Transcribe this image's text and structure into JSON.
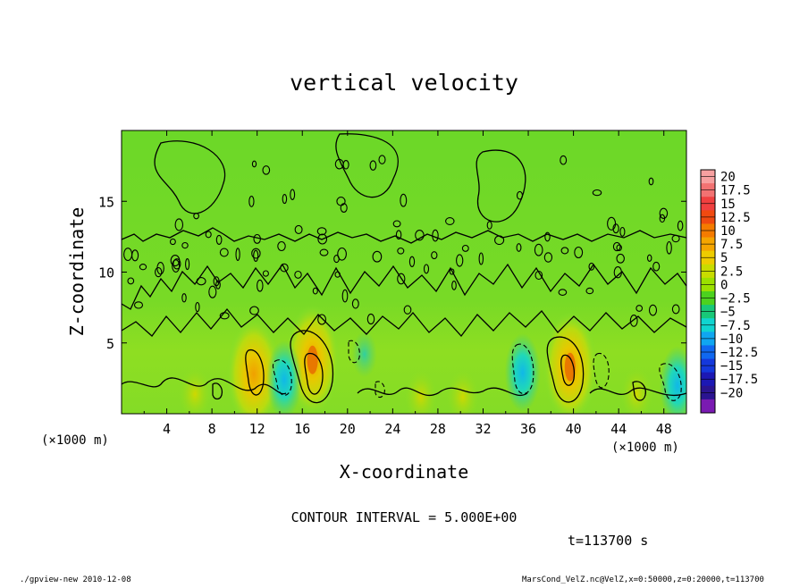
{
  "chart_data": {
    "type": "heatmap",
    "title": "vertical velocity",
    "xlabel": "X-coordinate",
    "ylabel": "Z-coordinate",
    "x_unit": "(×1000 m)",
    "xlim": [
      0,
      50
    ],
    "ylim": [
      0,
      20
    ],
    "x_ticks": [
      "4",
      "8",
      "12",
      "16",
      "20",
      "24",
      "28",
      "32",
      "36",
      "40",
      "44",
      "48"
    ],
    "y_ticks": [
      "5",
      "10",
      "15"
    ],
    "contour_interval_label": "CONTOUR INTERVAL = 5.000E+00",
    "time_label": "t=113700 s",
    "colorbar": {
      "labels": [
        "20",
        "17.5",
        "15",
        "12.5",
        "10",
        "7.5",
        "5",
        "2.5",
        "0",
        "−2.5",
        "−5",
        "−7.5",
        "−10",
        "−12.5",
        "−15",
        "−17.5",
        "−20"
      ],
      "colors": [
        "#f7a0a0",
        "#f27272",
        "#f04040",
        "#f04a10",
        "#f57b00",
        "#f5a500",
        "#eecc00",
        "#c8dc00",
        "#9be000",
        "#4cd21e",
        "#18c878",
        "#10d4d0",
        "#10a6f0",
        "#1068f0",
        "#1438dc",
        "#1c18b4",
        "#2a1490",
        "#7a1ab2"
      ]
    },
    "updrafts": [
      {
        "x": 6.5,
        "z": 1.4,
        "w": 4
      },
      {
        "x": 11.7,
        "z": 2.8,
        "w": 7
      },
      {
        "x": 16.9,
        "z": 3.8,
        "w": 13
      },
      {
        "x": 26.5,
        "z": 1.2,
        "w": 3
      },
      {
        "x": 30.2,
        "z": 1.2,
        "w": 3
      },
      {
        "x": 39.7,
        "z": 3.3,
        "w": 14
      },
      {
        "x": 45.6,
        "z": 1.4,
        "w": 4
      }
    ],
    "downdrafts": [
      {
        "x": 14.4,
        "z": 2.4,
        "w": -7
      },
      {
        "x": 21.5,
        "z": 4.2,
        "w": -3
      },
      {
        "x": 35.5,
        "z": 2.9,
        "w": -8
      },
      {
        "x": 49.2,
        "z": 2.0,
        "w": -6
      }
    ]
  },
  "footer": {
    "left": "./gpview-new  2010-12-08",
    "right": "MarsCond_VelZ.nc@VelZ,x=0:50000,z=0:20000,t=113700"
  }
}
